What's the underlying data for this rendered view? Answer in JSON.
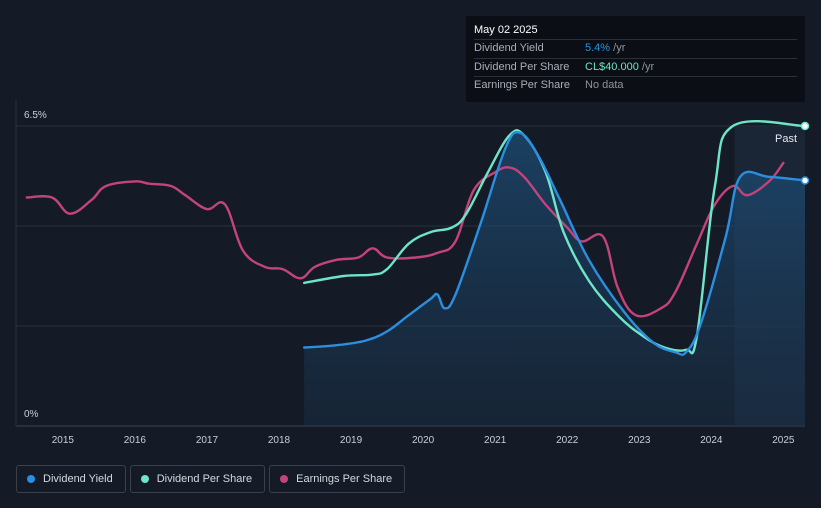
{
  "colors": {
    "dividend_yield": "#2a8fe0",
    "dividend_per_share": "#6fe5c8",
    "earnings_per_share": "#c2447a",
    "background": "#151b26"
  },
  "tooltip": {
    "date": "May 02 2025",
    "rows": [
      {
        "label": "Dividend Yield",
        "value": "5.4%",
        "unit": " /yr",
        "color": "#2a8fe0"
      },
      {
        "label": "Dividend Per Share",
        "value": "CL$40.000",
        "unit": " /yr",
        "color": "#6fe5c8"
      },
      {
        "label": "Earnings Per Share",
        "value": "No data",
        "unit": "",
        "color": "#8e959f"
      }
    ]
  },
  "past_label": "Past",
  "legend": [
    {
      "label": "Dividend Yield",
      "color": "#2a8fe0"
    },
    {
      "label": "Dividend Per Share",
      "color": "#6fe5c8"
    },
    {
      "label": "Earnings Per Share",
      "color": "#c2447a"
    }
  ],
  "chart_data": {
    "type": "line",
    "title": "",
    "xlabel": "",
    "ylabel": "",
    "ylim": [
      0,
      6.5
    ],
    "xlim": [
      2014.35,
      2025.3
    ],
    "y_tick_labels": [
      "6.5%",
      "0%"
    ],
    "x_tick_labels": [
      "2015",
      "2016",
      "2017",
      "2018",
      "2019",
      "2020",
      "2021",
      "2022",
      "2023",
      "2024",
      "2025"
    ],
    "grid": true,
    "series": [
      {
        "name": "Dividend Yield",
        "unit": "%",
        "filled": true,
        "points": [
          [
            2018.35,
            1.7
          ],
          [
            2018.8,
            1.75
          ],
          [
            2019.2,
            1.85
          ],
          [
            2019.5,
            2.05
          ],
          [
            2019.8,
            2.4
          ],
          [
            2020.1,
            2.75
          ],
          [
            2020.2,
            2.85
          ],
          [
            2020.3,
            2.55
          ],
          [
            2020.45,
            2.85
          ],
          [
            2020.8,
            4.4
          ],
          [
            2021.15,
            6.05
          ],
          [
            2021.35,
            6.35
          ],
          [
            2021.6,
            5.85
          ],
          [
            2021.9,
            4.9
          ],
          [
            2022.3,
            3.6
          ],
          [
            2022.8,
            2.45
          ],
          [
            2023.2,
            1.8
          ],
          [
            2023.5,
            1.6
          ],
          [
            2023.65,
            1.6
          ],
          [
            2023.85,
            2.2
          ],
          [
            2024.2,
            4.1
          ],
          [
            2024.4,
            5.4
          ],
          [
            2024.8,
            5.4
          ],
          [
            2025.3,
            5.32
          ]
        ]
      },
      {
        "name": "Dividend Per Share",
        "unit": "CL$",
        "filled": false,
        "points": [
          [
            2018.35,
            3.1
          ],
          [
            2018.9,
            3.25
          ],
          [
            2019.3,
            3.28
          ],
          [
            2019.5,
            3.4
          ],
          [
            2019.8,
            3.95
          ],
          [
            2020.1,
            4.2
          ],
          [
            2020.4,
            4.3
          ],
          [
            2020.6,
            4.6
          ],
          [
            2020.9,
            5.5
          ],
          [
            2021.2,
            6.3
          ],
          [
            2021.4,
            6.3
          ],
          [
            2021.7,
            5.5
          ],
          [
            2021.95,
            4.2
          ],
          [
            2022.3,
            3.15
          ],
          [
            2022.7,
            2.4
          ],
          [
            2023.05,
            1.95
          ],
          [
            2023.35,
            1.7
          ],
          [
            2023.65,
            1.65
          ],
          [
            2023.8,
            1.95
          ],
          [
            2024.05,
            5.2
          ],
          [
            2024.3,
            6.5
          ],
          [
            2025.3,
            6.5
          ]
        ]
      },
      {
        "name": "Earnings Per Share",
        "unit": "CL$",
        "filled": false,
        "points": [
          [
            2014.5,
            4.95
          ],
          [
            2014.85,
            4.95
          ],
          [
            2015.1,
            4.6
          ],
          [
            2015.4,
            4.9
          ],
          [
            2015.6,
            5.2
          ],
          [
            2016.0,
            5.3
          ],
          [
            2016.2,
            5.25
          ],
          [
            2016.5,
            5.2
          ],
          [
            2016.7,
            5.0
          ],
          [
            2017.0,
            4.7
          ],
          [
            2017.25,
            4.8
          ],
          [
            2017.5,
            3.8
          ],
          [
            2017.8,
            3.45
          ],
          [
            2018.05,
            3.4
          ],
          [
            2018.3,
            3.2
          ],
          [
            2018.5,
            3.45
          ],
          [
            2018.8,
            3.6
          ],
          [
            2019.1,
            3.65
          ],
          [
            2019.3,
            3.85
          ],
          [
            2019.5,
            3.65
          ],
          [
            2019.9,
            3.65
          ],
          [
            2020.2,
            3.75
          ],
          [
            2020.45,
            4.0
          ],
          [
            2020.7,
            5.1
          ],
          [
            2021.0,
            5.5
          ],
          [
            2021.2,
            5.6
          ],
          [
            2021.4,
            5.4
          ],
          [
            2021.7,
            4.8
          ],
          [
            2022.0,
            4.3
          ],
          [
            2022.2,
            4.0
          ],
          [
            2022.5,
            4.1
          ],
          [
            2022.7,
            3.0
          ],
          [
            2022.95,
            2.4
          ],
          [
            2023.3,
            2.55
          ],
          [
            2023.5,
            2.9
          ],
          [
            2023.8,
            3.95
          ],
          [
            2024.05,
            4.8
          ],
          [
            2024.3,
            5.2
          ],
          [
            2024.5,
            5.0
          ],
          [
            2024.8,
            5.3
          ],
          [
            2025.0,
            5.7
          ]
        ]
      }
    ],
    "forecast_start": 2024.32
  }
}
